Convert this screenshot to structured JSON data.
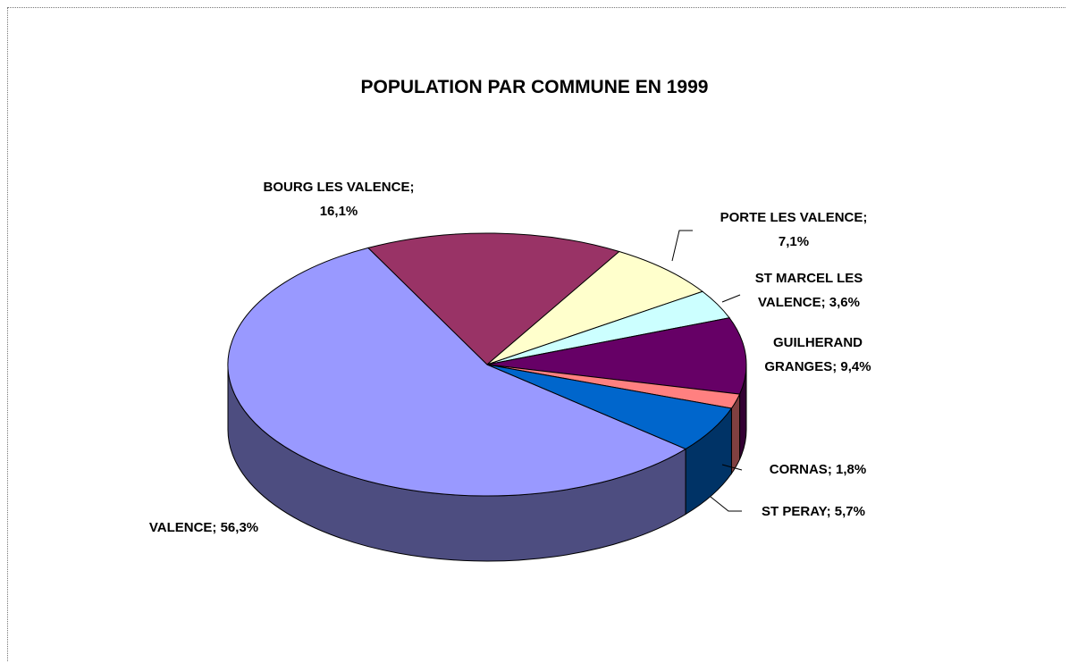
{
  "chart_data": {
    "type": "pie3d",
    "title": "POPULATION PAR COMMUNE EN 1999",
    "categories": [
      "VALENCE",
      "BOURG LES VALENCE",
      "PORTE LES VALENCE",
      "ST MARCEL LES VALENCE",
      "GUILHERAND GRANGES",
      "CORNAS",
      "ST PERAY"
    ],
    "values": [
      56.3,
      16.1,
      7.1,
      3.6,
      9.4,
      1.8,
      5.7
    ],
    "value_labels": [
      "56,3%",
      "16,1%",
      "7,1%",
      "3,6%",
      "9,4%",
      "1,8%",
      "5,7%"
    ],
    "label_separator": ";",
    "colors": [
      "#9999ff",
      "#993366",
      "#ffffcc",
      "#ccffff",
      "#660066",
      "#ff8080",
      "#0066cc"
    ]
  }
}
